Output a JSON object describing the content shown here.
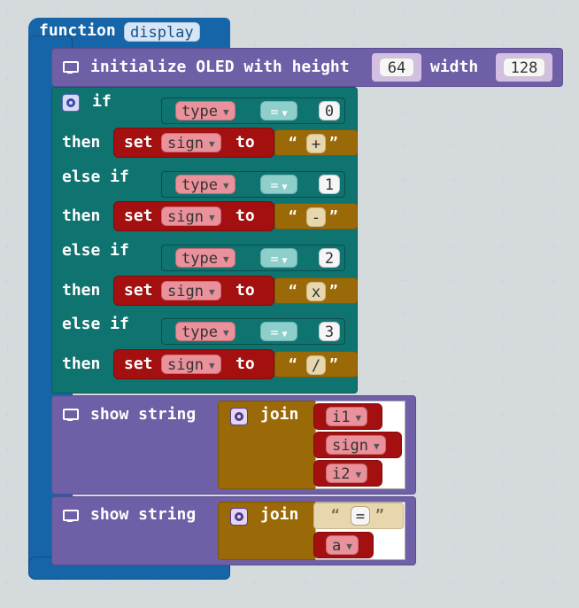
{
  "function_block": {
    "keyword": "function",
    "name": "display",
    "color": "#1565a8"
  },
  "oled_init": {
    "label": "initialize OLED with height",
    "height": "64",
    "width_label": "width",
    "width": "128",
    "icon": "monitor-icon"
  },
  "if_block": {
    "if_label": "if",
    "then_label": "then",
    "elseif_label": "else if",
    "branches": [
      {
        "var": "type",
        "op": "=",
        "value": "0",
        "set_label": "set",
        "target": "sign",
        "to_label": "to",
        "string": "+"
      },
      {
        "var": "type",
        "op": "=",
        "value": "1",
        "set_label": "set",
        "target": "sign",
        "to_label": "to",
        "string": "-"
      },
      {
        "var": "type",
        "op": "=",
        "value": "2",
        "set_label": "set",
        "target": "sign",
        "to_label": "to",
        "string": "x"
      },
      {
        "var": "type",
        "op": "=",
        "value": "3",
        "set_label": "set",
        "target": "sign",
        "to_label": "to",
        "string": "/"
      }
    ]
  },
  "show1": {
    "label": "show string",
    "join_label": "join",
    "items": [
      "i1",
      "sign",
      "i2"
    ]
  },
  "show2": {
    "label": "show string",
    "join_label": "join",
    "string": "=",
    "item": "a"
  },
  "dropdown_arrow": "▼",
  "open_quote": "“",
  "close_quote": "”",
  "colors": {
    "function": "#1565a8",
    "display": "#6f5fa6",
    "logic": "#0f7370",
    "text": "#9b6a08",
    "variables": "#a40f0f"
  }
}
